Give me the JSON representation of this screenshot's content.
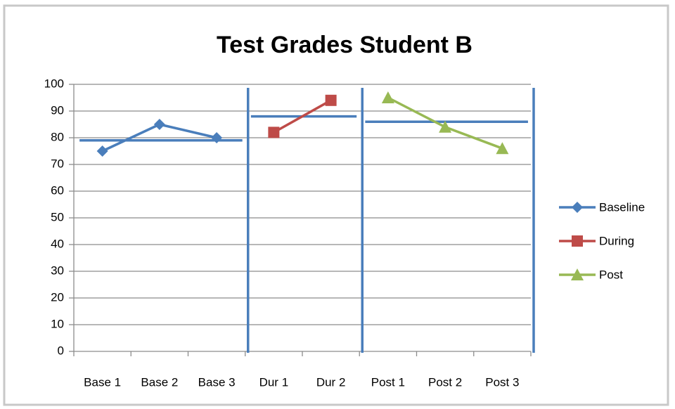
{
  "chart_data": {
    "type": "line",
    "title": "Test Grades Student B",
    "categories": [
      "Base 1",
      "Base 2",
      "Base 3",
      "Dur 1",
      "Dur 2",
      "Post 1",
      "Post 2",
      "Post 3"
    ],
    "series": [
      {
        "name": "Baseline",
        "color": "#4a7ebb",
        "marker": "diamond",
        "level": 79,
        "values": [
          75,
          85,
          80,
          null,
          null,
          null,
          null,
          null
        ]
      },
      {
        "name": "During",
        "color": "#be4b48",
        "marker": "square",
        "level": 88,
        "values": [
          null,
          null,
          null,
          82,
          94,
          null,
          null,
          null
        ]
      },
      {
        "name": "Post",
        "color": "#98b954",
        "marker": "triangle",
        "level": 86,
        "values": [
          null,
          null,
          null,
          null,
          null,
          95,
          84,
          76
        ]
      }
    ],
    "ylim": [
      0,
      100
    ],
    "yticks": [
      0,
      10,
      20,
      30,
      40,
      50,
      60,
      70,
      80,
      90,
      100
    ],
    "grid": true,
    "legend": "right"
  }
}
